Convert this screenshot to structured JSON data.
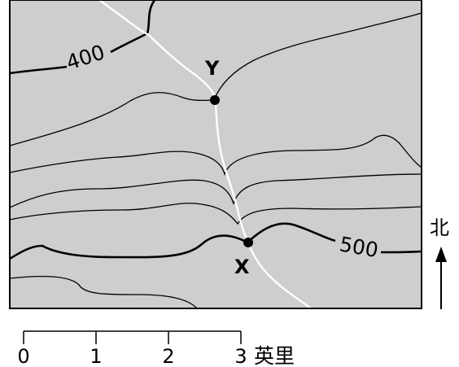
{
  "map": {
    "contour_labels": {
      "lower": "400",
      "upper": "500"
    },
    "points": {
      "x": "X",
      "y": "Y"
    },
    "north_label": "北",
    "scale": {
      "ticks": [
        "0",
        "1",
        "2",
        "3"
      ],
      "unit": "英里"
    },
    "colors": {
      "land": "#cecece",
      "river": "#ffffff",
      "contour": "#000000",
      "frame": "#000000"
    }
  }
}
